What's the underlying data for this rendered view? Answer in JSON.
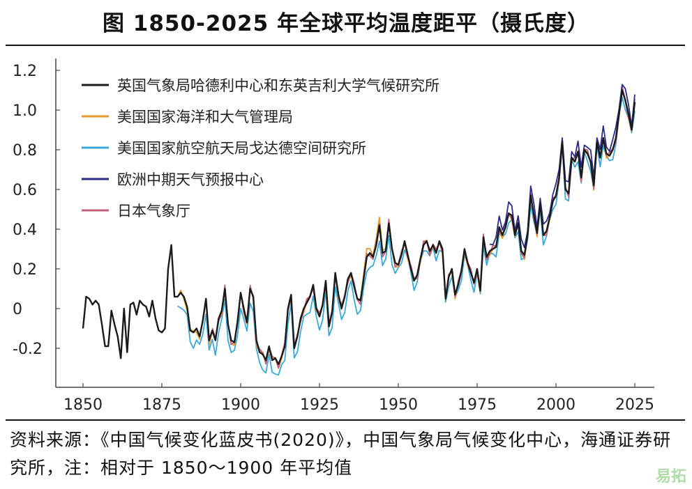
{
  "title": "图  1850-2025 年全球平均温度距平（摄氏度）",
  "source": "资料来源：《中国气候变化蓝皮书(2020)》，中国气象局气候变化中心，海通证券研究所，注：相对于 1850～1900 年平均值",
  "watermark": "易拓",
  "chart_data": {
    "type": "line",
    "xlim": [
      1850,
      2025
    ],
    "ylim": [
      -0.35,
      1.25
    ],
    "x_ticks": [
      1850,
      1875,
      1900,
      1925,
      1950,
      1975,
      2000,
      2025
    ],
    "x_tick_labels": [
      "1850",
      "1875",
      "1900",
      "1925",
      "1950",
      "1975",
      "2000",
      "2025"
    ],
    "y_ticks": [
      -0.2,
      0,
      0.2,
      0.4,
      0.6,
      0.8,
      1.0,
      1.2
    ],
    "y_tick_labels": [
      "-0.2",
      "0",
      "0.2",
      "0.4",
      "0.6",
      "0.8",
      "1.0",
      "1.2"
    ],
    "grid": false,
    "legend_position": "top-left",
    "base_series": {
      "x_start": 1850,
      "values": [
        -0.1,
        0.06,
        0.05,
        0.02,
        0.04,
        0.02,
        -0.08,
        -0.19,
        -0.19,
        -0.01,
        -0.08,
        -0.14,
        -0.25,
        0.0,
        -0.22,
        0.02,
        0.03,
        -0.03,
        0.04,
        0.02,
        0.01,
        -0.04,
        0.04,
        -0.05,
        -0.11,
        -0.12,
        -0.1,
        0.2,
        0.32,
        0.06,
        0.06,
        0.08,
        0.06,
        0.01,
        -0.11,
        -0.12,
        -0.1,
        -0.14,
        -0.06,
        0.05,
        -0.16,
        -0.11,
        -0.16,
        -0.05,
        -0.01,
        0.1,
        -0.08,
        -0.16,
        -0.17,
        -0.07,
        0.08,
        0.0,
        -0.07,
        0.1,
        0.06,
        -0.16,
        -0.22,
        -0.23,
        -0.26,
        -0.19,
        -0.26,
        -0.25,
        -0.28,
        -0.24,
        -0.19,
        0.0,
        0.07,
        -0.2,
        -0.14,
        -0.05,
        0.0,
        0.03,
        0.06,
        0.12,
        0.0,
        -0.04,
        0.02,
        0.14,
        -0.09,
        -0.02,
        0.18,
        0.07,
        0.0,
        0.06,
        0.15,
        0.18,
        0.11,
        0.05,
        0.04,
        0.15,
        0.26,
        0.28,
        0.26,
        0.32,
        0.42,
        0.28,
        0.29,
        0.43,
        0.3,
        0.23,
        0.22,
        0.27,
        0.34,
        0.27,
        0.2,
        0.14,
        0.17,
        0.25,
        0.32,
        0.34,
        0.29,
        0.32,
        0.28,
        0.34,
        0.3,
        0.05,
        0.16,
        0.2,
        0.07,
        0.12,
        0.19,
        0.3,
        0.23,
        0.18,
        0.13,
        0.2,
        0.09,
        0.36,
        0.26,
        0.29,
        0.3,
        0.31,
        0.41,
        0.37,
        0.41,
        0.48,
        0.47,
        0.37,
        0.43,
        0.29,
        0.27,
        0.37,
        0.57,
        0.47,
        0.38,
        0.53,
        0.37,
        0.39,
        0.46,
        0.54,
        0.57,
        0.66,
        0.84,
        0.6,
        0.58,
        0.76,
        0.74,
        0.79,
        0.66,
        0.8,
        0.78,
        0.74,
        0.62,
        0.84,
        0.76,
        0.86,
        0.78,
        0.77,
        0.8,
        0.86,
        0.98,
        1.1,
        1.05,
        0.98,
        0.9,
        1.04
      ]
    },
    "series": [
      {
        "name": "英国气象局哈德利中心和东英吉利大学气候研究所",
        "color": "#1a1a1a",
        "start": 1850,
        "offset": 0,
        "noise": 0
      },
      {
        "name": "美国国家海洋和大气管理局",
        "color": "#e89a2b",
        "start": 1880,
        "offset": -0.005,
        "noise": 0.018
      },
      {
        "name": "美国国家航空航天局戈达德空间研究所",
        "color": "#3aa8d8",
        "start": 1880,
        "offset": -0.03,
        "noise": 0.02
      },
      {
        "name": "欧洲中期天气预报中心",
        "color": "#2a2a8a",
        "start": 1979,
        "offset": 0.04,
        "noise": 0.02
      },
      {
        "name": "日本气象厅",
        "color": "#c2607a",
        "start": 1891,
        "offset": 0.0,
        "noise": 0.02
      }
    ]
  }
}
